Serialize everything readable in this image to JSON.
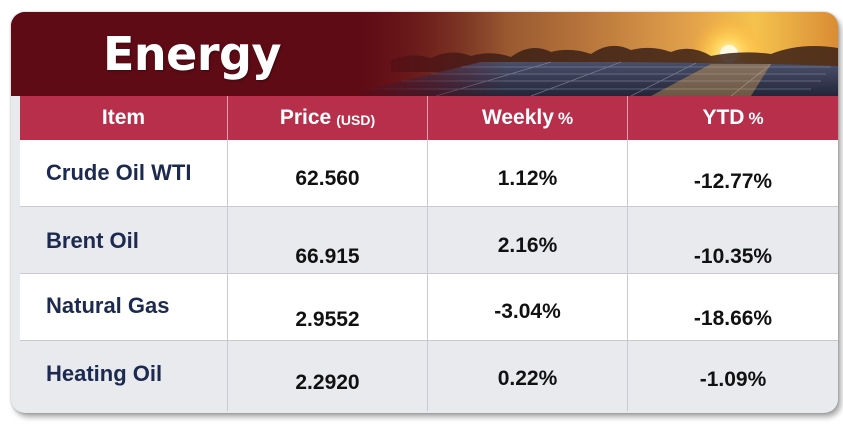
{
  "banner": {
    "title": "Energy"
  },
  "table": {
    "headers": {
      "item": "Item",
      "price": "Price",
      "price_unit": "(USD)",
      "weekly": "Weekly",
      "weekly_unit": "%",
      "ytd": "YTD",
      "ytd_unit": "%"
    },
    "rows": [
      {
        "item": "Crude Oil WTI",
        "price": "62.560",
        "weekly": "1.12%",
        "ytd": "-12.77%"
      },
      {
        "item": "Brent Oil",
        "price": "66.915",
        "weekly": "2.16%",
        "ytd": "-10.35%"
      },
      {
        "item": "Natural Gas",
        "price": "2.9552",
        "weekly": "-3.04%",
        "ytd": "-18.66%"
      },
      {
        "item": "Heating Oil",
        "price": "2.2920",
        "weekly": "0.22%",
        "ytd": "-1.09%"
      }
    ]
  },
  "colors": {
    "banner_dark": "#5e0b16",
    "header_bar": "#b72f4b",
    "item_text": "#1d2a4f",
    "row_alt": "#e9eaee"
  }
}
